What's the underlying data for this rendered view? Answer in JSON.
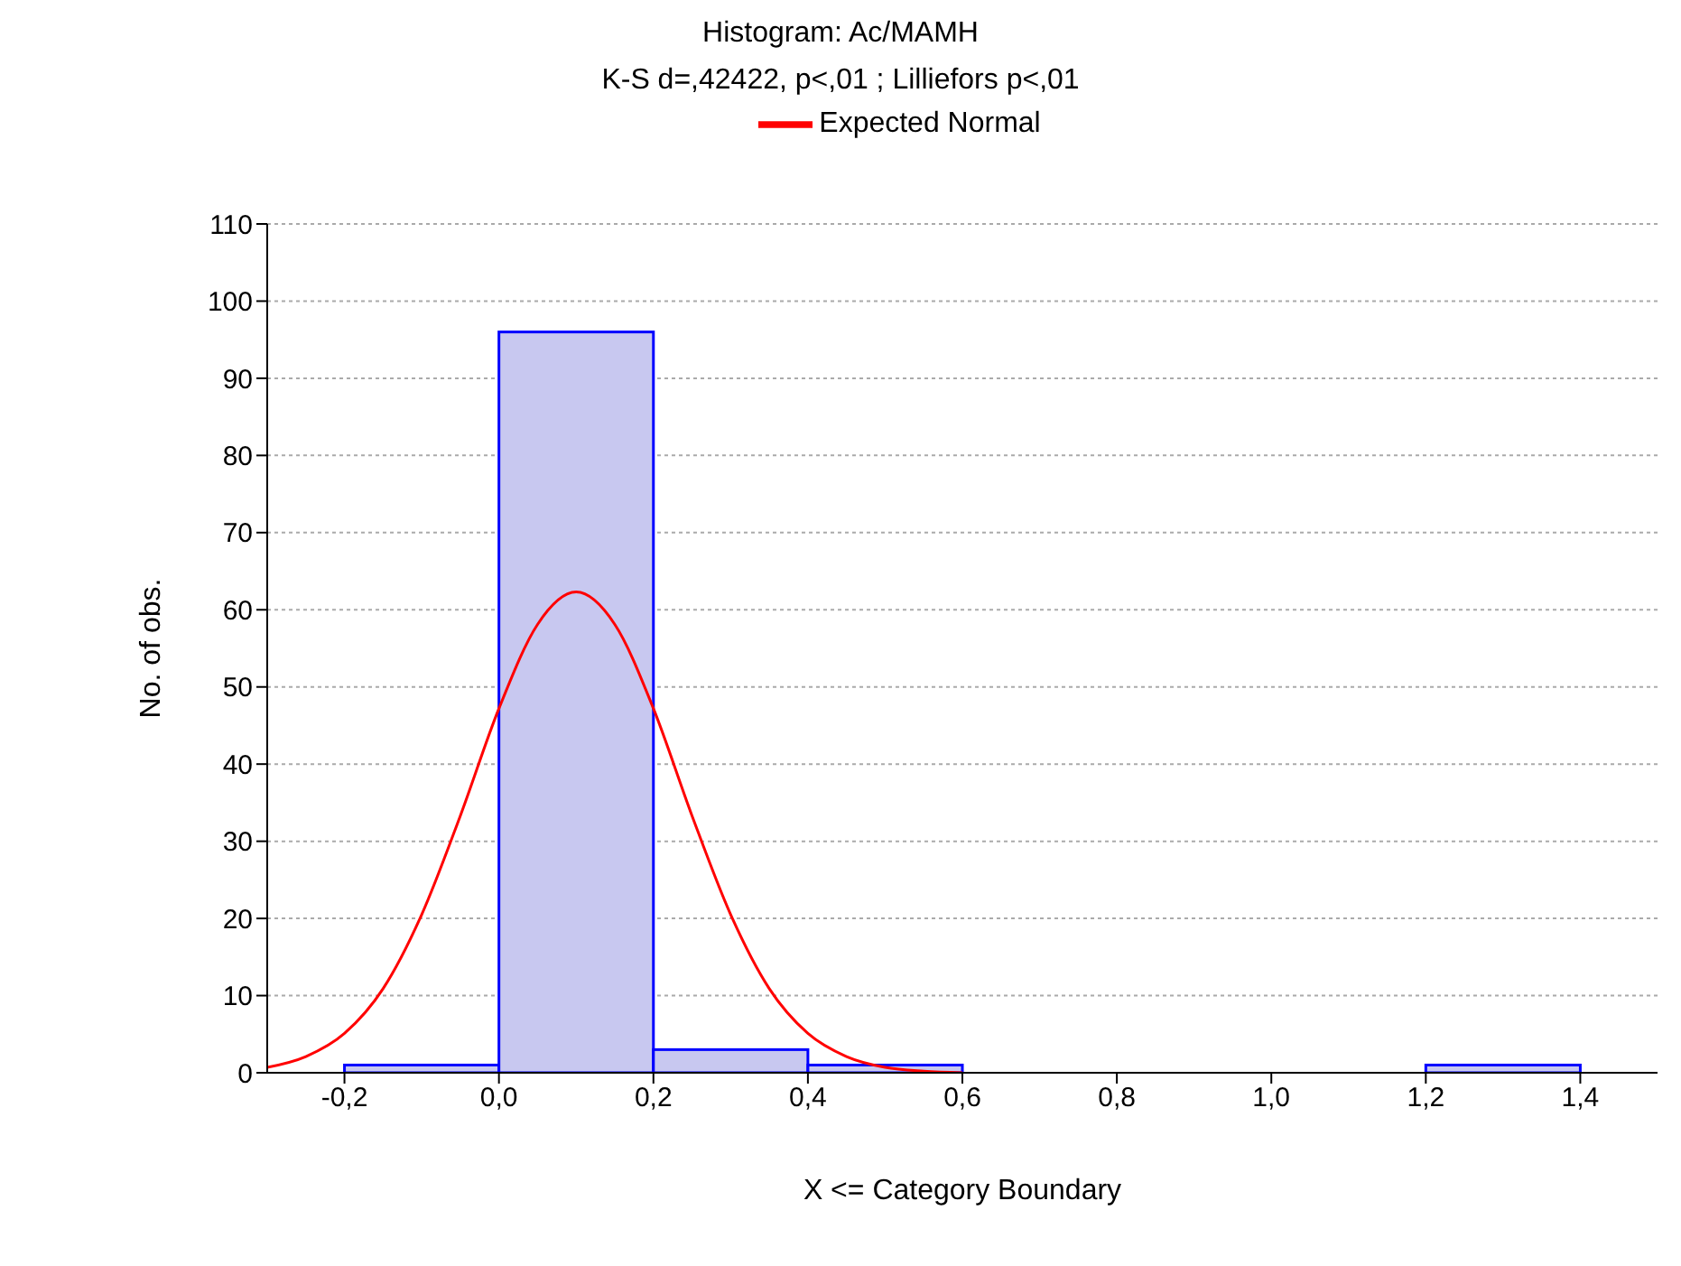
{
  "chart_data": {
    "type": "histogram",
    "title": "Histogram: Ac/MAMH",
    "subtitle": "K-S d=,42422, p<,01 ; Lilliefors p<,01",
    "xlabel": "X <= Category Boundary",
    "ylabel": "No. of obs.",
    "bins": [
      -0.2,
      0,
      0.2,
      0.4,
      0.6,
      0.8,
      1.0,
      1.2,
      1.4
    ],
    "values": [
      1,
      96,
      3,
      1,
      0,
      0,
      0,
      1
    ],
    "color": "#c8c8f0",
    "series": [
      {
        "type": "line",
        "name": "Expected Normal",
        "color": "#ff0000",
        "x": [
          -0.3,
          -0.25,
          -0.2,
          -0.15,
          -0.1,
          -0.05,
          0,
          0.05,
          0.1,
          0.15,
          0.2,
          0.25,
          0.3,
          0.35,
          0.4,
          0.45,
          0.5,
          0.55,
          0.6
        ],
        "values": [
          0.7,
          2.1,
          5.1,
          10.9,
          20.5,
          33.3,
          47.2,
          58.1,
          62.3,
          58.1,
          47.2,
          33.3,
          20.5,
          10.9,
          5.1,
          2.1,
          0.7,
          0.2,
          0
        ]
      }
    ],
    "xlim": [
      -0.3,
      1.5
    ],
    "xticks": [
      {
        "value": -0.2,
        "label": "-0,2"
      },
      {
        "value": 0,
        "label": "0,0"
      },
      {
        "value": 0.2,
        "label": "0,2"
      },
      {
        "value": 0.4,
        "label": "0,4"
      },
      {
        "value": 0.6,
        "label": "0,6"
      },
      {
        "value": 0.8,
        "label": "0,8"
      },
      {
        "value": 1.0,
        "label": "1,0"
      },
      {
        "value": 1.2,
        "label": "1,2"
      },
      {
        "value": 1.4,
        "label": "1,4"
      }
    ],
    "ylim": [
      0,
      110
    ],
    "yticks": [
      0,
      10,
      20,
      30,
      40,
      50,
      60,
      70,
      80,
      90,
      100,
      110
    ],
    "grid": "y",
    "legend": "top",
    "marker": "none",
    "line_style": "solid"
  }
}
